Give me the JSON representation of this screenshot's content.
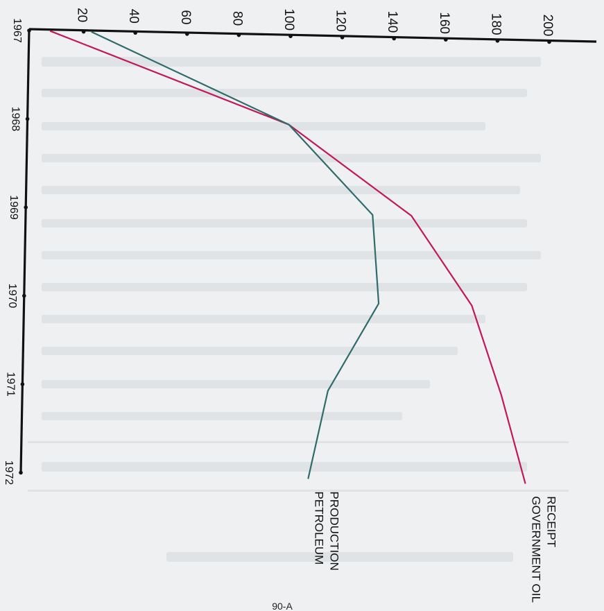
{
  "page_number": "90-A",
  "colors": {
    "paper": "#eef0f1",
    "axis": "#111111",
    "government_oil_receipt": "#c0185a",
    "petroleum_production": "#2f6b6a"
  },
  "chart_data": {
    "type": "line",
    "orientation": "rotated-90-clockwise",
    "x": [
      1967,
      1968,
      1969,
      1970,
      1971,
      1972
    ],
    "x_tick_labels": [
      "1967",
      "1968",
      "1969",
      "1970",
      "1971",
      "1972"
    ],
    "xlim": [
      1967,
      1972
    ],
    "y_ticks": [
      20,
      40,
      60,
      80,
      100,
      120,
      140,
      160,
      180,
      200
    ],
    "y_tick_labels": [
      "20",
      "40",
      "60",
      "80",
      "100",
      "120",
      "140",
      "160",
      "180",
      "200"
    ],
    "ylim": [
      0,
      210
    ],
    "series": [
      {
        "name": "GOVERNMENT OIL RECEIPT",
        "label_lines": [
          "GOVERNMENT  OIL",
          "RECEIPT"
        ],
        "color_key": "government_oil_receipt",
        "points": [
          [
            1967,
            7
          ],
          [
            1968,
            100
          ],
          [
            1969,
            148
          ],
          [
            1970,
            172
          ],
          [
            1971,
            184
          ],
          [
            1972,
            194
          ]
        ]
      },
      {
        "name": "PETROLEUM PRODUCTION",
        "label_lines": [
          "PETROLEUM",
          "PRODUCTION"
        ],
        "color_key": "petroleum_production",
        "points": [
          [
            1967,
            23
          ],
          [
            1968,
            100
          ],
          [
            1969,
            133
          ],
          [
            1970,
            136
          ],
          [
            1971,
            117
          ],
          [
            1972,
            110
          ]
        ]
      }
    ],
    "grid": false,
    "legend": "series labels at line ends"
  }
}
